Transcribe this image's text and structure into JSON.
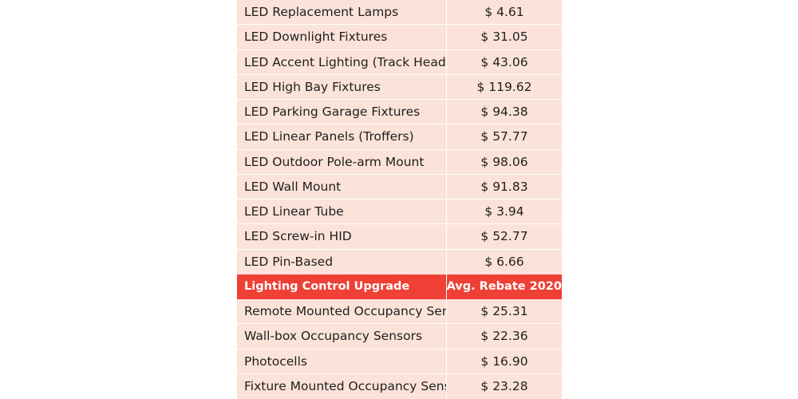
{
  "lighting_rows": [
    {
      "name": "LED Replacement Lamps",
      "value": "$ 4.61"
    },
    {
      "name": "LED Downlight Fixtures",
      "value": "$ 31.05"
    },
    {
      "name": "LED Accent Lighting (Track Heads)",
      "value": "$ 43.06"
    },
    {
      "name": "LED High Bay Fixtures",
      "value": "$ 119.62"
    },
    {
      "name": "LED Parking Garage Fixtures",
      "value": "$ 94.38"
    },
    {
      "name": "LED Linear Panels (Troffers)",
      "value": "$ 57.77"
    },
    {
      "name": "LED Outdoor Pole-arm Mount",
      "value": "$ 98.06"
    },
    {
      "name": "LED Wall Mount",
      "value": "$ 91.83"
    },
    {
      "name": "LED Linear Tube",
      "value": "$ 3.94"
    },
    {
      "name": "LED Screw-in HID",
      "value": "$ 52.77"
    },
    {
      "name": "LED Pin-Based",
      "value": "$ 6.66"
    }
  ],
  "control_header": {
    "category": "Lighting Control Upgrade",
    "rebate": "Avg. Rebate 2020"
  },
  "control_rows": [
    {
      "name": "Remote Mounted Occupancy Sensors",
      "value": "$ 25.31"
    },
    {
      "name": "Wall-box Occupancy Sensors",
      "value": "$ 22.36"
    },
    {
      "name": "Photocells",
      "value": "$ 16.90"
    },
    {
      "name": "Fixture Mounted Occupancy Sensors",
      "value": "$ 23.28"
    }
  ],
  "colors": {
    "row_background": "#fce3d9",
    "header_background": "#ee4035",
    "header_text": "#ffffff",
    "body_text": "#1e1e1e"
  }
}
